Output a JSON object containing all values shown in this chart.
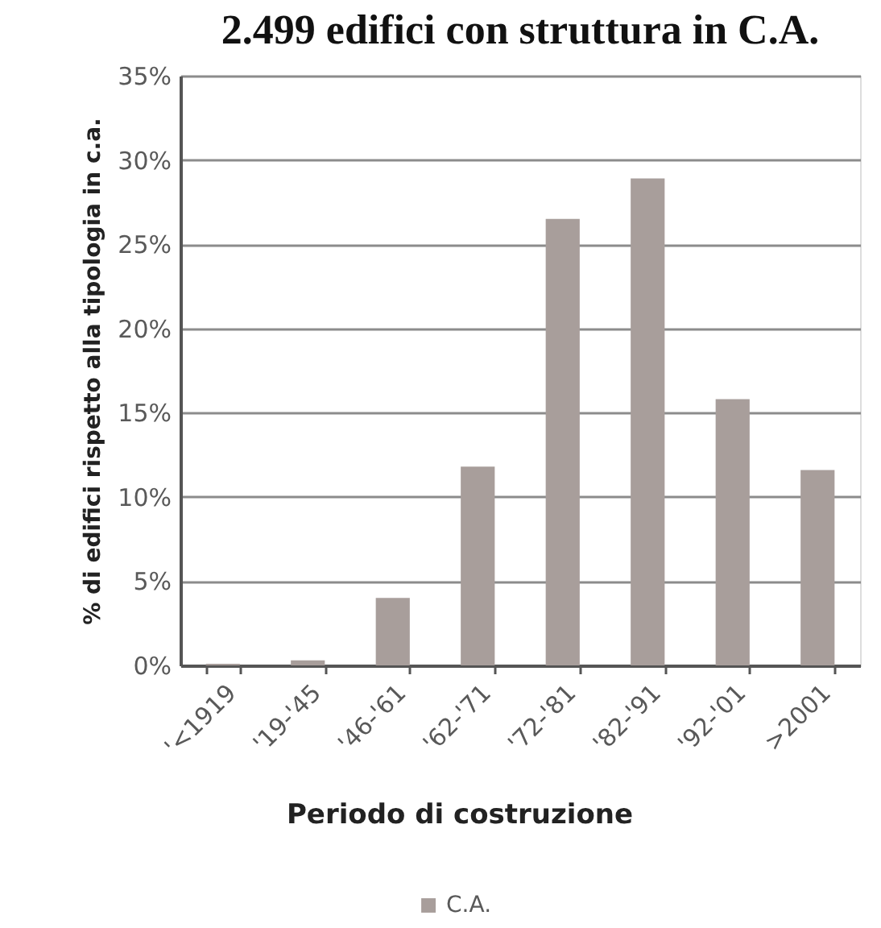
{
  "chart_data": {
    "type": "bar",
    "title": "2.499 edifici con struttura in C.A.",
    "xlabel": "Periodo di costruzione",
    "ylabel": "% di edifici rispetto alla tipologia in c.a.",
    "categories": [
      "'<1919",
      "'19-'45",
      "'46-'61",
      "'62-'71",
      "'72-'81",
      "'82-'91",
      "'92-'01",
      ">2001"
    ],
    "series": [
      {
        "name": "C.A.",
        "color": "#a89e9b",
        "values": [
          0.1,
          0.3,
          4.0,
          11.8,
          26.5,
          28.9,
          15.8,
          11.6
        ]
      }
    ],
    "ylim": [
      0,
      35
    ],
    "yticks": [
      {
        "value": 0,
        "label": "0%"
      },
      {
        "value": 5,
        "label": "5%"
      },
      {
        "value": 10,
        "label": "10%"
      },
      {
        "value": 15,
        "label": "15%"
      },
      {
        "value": 20,
        "label": "20%"
      },
      {
        "value": 25,
        "label": "25%"
      },
      {
        "value": 30,
        "label": "30%"
      },
      {
        "value": 35,
        "label": "35%"
      }
    ],
    "grid": "y",
    "legend": "bottom"
  }
}
